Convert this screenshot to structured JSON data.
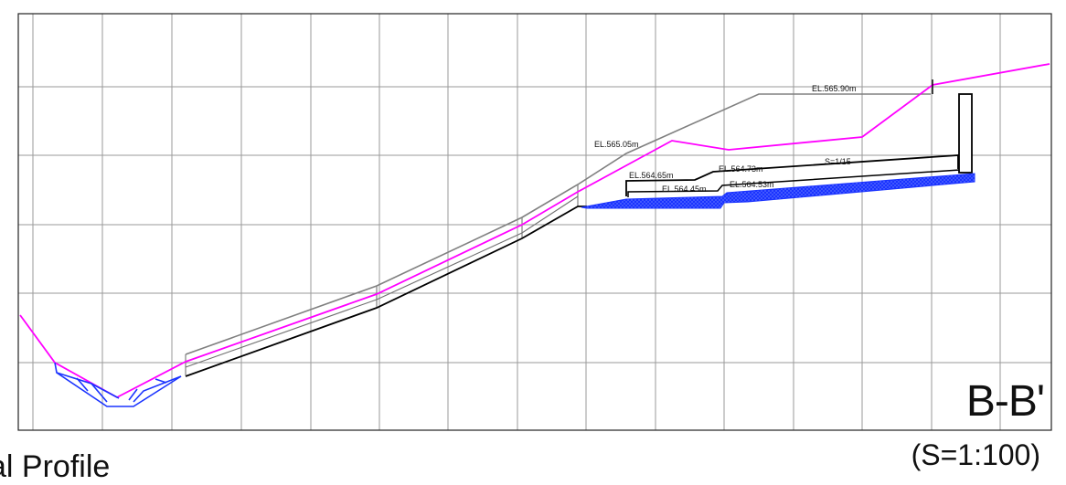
{
  "drawing": {
    "section_id": "B-B'",
    "scale": "(S=1:100)",
    "title_partial": "al Profile"
  },
  "annotations": {
    "el_565_90": "EL.565.90m",
    "el_565_05": "EL.565.05m",
    "el_564_65": "EL.564.65m",
    "el_564_73": "EL.564.73m",
    "el_564_45": "EL.564.45m",
    "el_564_53": "EL.564.53m",
    "slope": "S=1/15"
  },
  "colors": {
    "grid": "#9a9a9a",
    "ground_line": "#ff00ff",
    "structure_line": "#000000",
    "outer_line": "#808080",
    "channel_fill": "#1a33ff"
  }
}
